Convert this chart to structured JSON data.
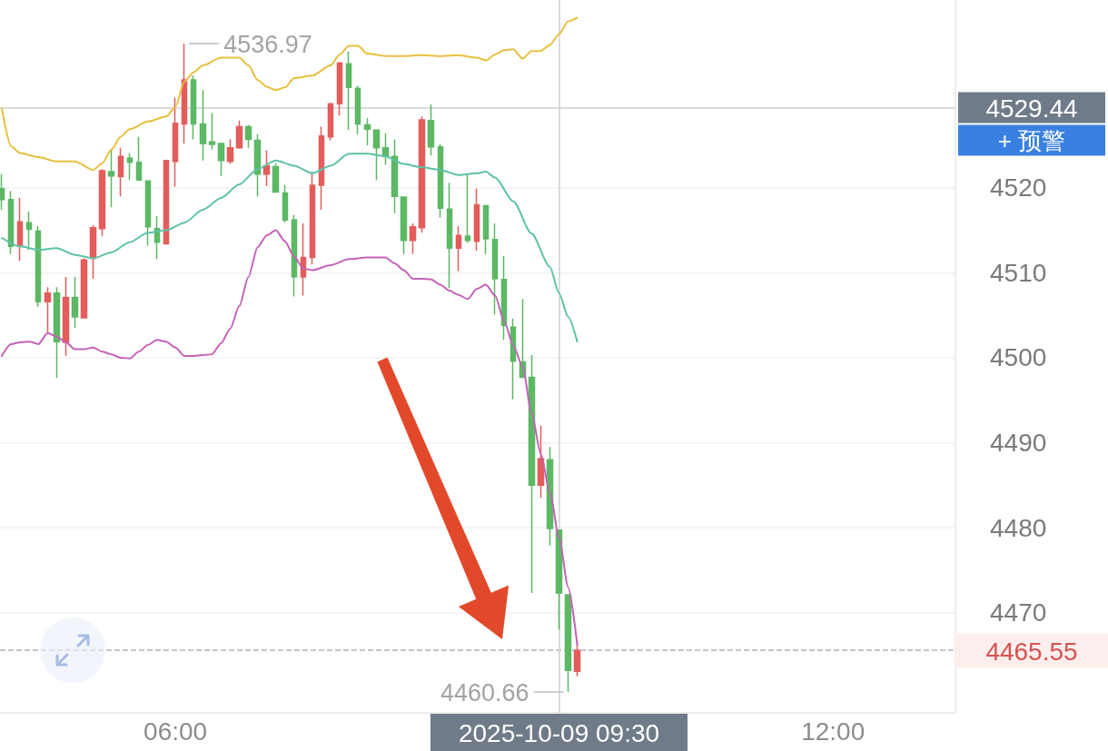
{
  "chart_data": {
    "type": "candlestick",
    "x": [
      "2025-10-09T04:25",
      "2025-10-09T04:30",
      "2025-10-09T04:35",
      "2025-10-09T04:40",
      "2025-10-09T04:45",
      "2025-10-09T04:50",
      "2025-10-09T04:55",
      "2025-10-09T05:00",
      "2025-10-09T05:05",
      "2025-10-09T05:10",
      "2025-10-09T05:15",
      "2025-10-09T05:20",
      "2025-10-09T05:25",
      "2025-10-09T05:30",
      "2025-10-09T05:35",
      "2025-10-09T05:40",
      "2025-10-09T05:45",
      "2025-10-09T05:50",
      "2025-10-09T05:55",
      "2025-10-09T06:00",
      "2025-10-09T06:05",
      "2025-10-09T06:10",
      "2025-10-09T06:15",
      "2025-10-09T06:20",
      "2025-10-09T06:25",
      "2025-10-09T06:30",
      "2025-10-09T06:35",
      "2025-10-09T06:40",
      "2025-10-09T06:45",
      "2025-10-09T06:50",
      "2025-10-09T06:55",
      "2025-10-09T07:00",
      "2025-10-09T07:05",
      "2025-10-09T07:10",
      "2025-10-09T07:15",
      "2025-10-09T07:20",
      "2025-10-09T07:25",
      "2025-10-09T07:30",
      "2025-10-09T07:35",
      "2025-10-09T07:40",
      "2025-10-09T07:45",
      "2025-10-09T07:50",
      "2025-10-09T07:55",
      "2025-10-09T08:00",
      "2025-10-09T08:05",
      "2025-10-09T08:10",
      "2025-10-09T08:15",
      "2025-10-09T08:20",
      "2025-10-09T08:25",
      "2025-10-09T08:30",
      "2025-10-09T08:35",
      "2025-10-09T08:40",
      "2025-10-09T08:45",
      "2025-10-09T08:50",
      "2025-10-09T08:55",
      "2025-10-09T09:00",
      "2025-10-09T09:05",
      "2025-10-09T09:10",
      "2025-10-09T09:15",
      "2025-10-09T09:20",
      "2025-10-09T09:25",
      "2025-10-09T09:30",
      "2025-10-09T09:35",
      "2025-10-09T09:40"
    ],
    "ohlc": [
      [
        4519.9,
        4521.6,
        4517.4,
        4518.6
      ],
      [
        4518.6,
        4519.6,
        4512.2,
        4513.1
      ],
      [
        4513.1,
        4518.8,
        4511.4,
        4516.0
      ],
      [
        4515.9,
        4517.2,
        4512.7,
        4515.1
      ],
      [
        4514.9,
        4515.5,
        4506.0,
        4506.6
      ],
      [
        4506.6,
        4508.3,
        4502.9,
        4507.6
      ],
      [
        4507.6,
        4508.3,
        4497.6,
        4501.9
      ],
      [
        4501.8,
        4509.5,
        4500.2,
        4507.1
      ],
      [
        4507.1,
        4509.5,
        4503.5,
        4504.8
      ],
      [
        4504.7,
        4511.7,
        4504.7,
        4511.5
      ],
      [
        4511.7,
        4515.6,
        4509.3,
        4515.3
      ],
      [
        4515.2,
        4522.2,
        4514.3,
        4522.0
      ],
      [
        4521.9,
        4524.5,
        4517.7,
        4521.4
      ],
      [
        4521.3,
        4524.7,
        4519.0,
        4523.7
      ],
      [
        4523.5,
        4524.1,
        4520.9,
        4523.0
      ],
      [
        4523.0,
        4526.0,
        4520.9,
        4520.9
      ],
      [
        4520.8,
        4520.8,
        4513.2,
        4515.4
      ],
      [
        4515.2,
        4516.7,
        4511.6,
        4513.6
      ],
      [
        4513.4,
        4523.2,
        4513.4,
        4523.2
      ],
      [
        4523.1,
        4530.6,
        4520.1,
        4527.6
      ],
      [
        4527.5,
        4536.97,
        4525.2,
        4532.7
      ],
      [
        4532.7,
        4533.2,
        4525.7,
        4527.5
      ],
      [
        4527.5,
        4531.5,
        4523.2,
        4525.2
      ],
      [
        4525.4,
        4528.8,
        4524.5,
        4525.1
      ],
      [
        4525.2,
        4525.2,
        4521.4,
        4523.2
      ],
      [
        4523.1,
        4525.7,
        4522.8,
        4524.7
      ],
      [
        4524.7,
        4527.9,
        4524.7,
        4527.2
      ],
      [
        4527.2,
        4527.4,
        4524.7,
        4525.7
      ],
      [
        4525.6,
        4526.3,
        4519.0,
        4521.6
      ],
      [
        4521.6,
        4524.4,
        4520.2,
        4522.6
      ],
      [
        4522.5,
        4522.9,
        4519.5,
        4519.5
      ],
      [
        4519.4,
        4520.3,
        4515.9,
        4516.2
      ],
      [
        4516.2,
        4516.8,
        4507.2,
        4509.5
      ],
      [
        4509.5,
        4515.8,
        4507.3,
        4511.8
      ],
      [
        4511.8,
        4521.9,
        4511.0,
        4520.3
      ],
      [
        4520.3,
        4527.2,
        4517.4,
        4526.1
      ],
      [
        4526.0,
        4529.9,
        4525.6,
        4529.9
      ],
      [
        4529.9,
        4534.7,
        4528.5,
        4534.7
      ],
      [
        4534.6,
        4536.0,
        4526.8,
        4531.8
      ],
      [
        4531.7,
        4532.0,
        4526.3,
        4527.5
      ],
      [
        4527.4,
        4528.2,
        4525.0,
        4526.9
      ],
      [
        4526.8,
        4526.8,
        4520.9,
        4524.7
      ],
      [
        4524.7,
        4526.4,
        4522.7,
        4523.7
      ],
      [
        4523.7,
        4525.7,
        4517.0,
        4519.0
      ],
      [
        4518.9,
        4518.9,
        4512.2,
        4513.8
      ],
      [
        4513.8,
        4515.8,
        4512.2,
        4515.4
      ],
      [
        4515.3,
        4528.4,
        4514.7,
        4528.0
      ],
      [
        4527.9,
        4529.8,
        4523.8,
        4524.8
      ],
      [
        4524.8,
        4525.1,
        4516.5,
        4517.6
      ],
      [
        4517.5,
        4520.6,
        4508.2,
        4512.9
      ],
      [
        4512.9,
        4515.5,
        4510.2,
        4514.4
      ],
      [
        4514.3,
        4521.5,
        4513.5,
        4513.8
      ],
      [
        4513.7,
        4519.9,
        4512.6,
        4518.0
      ],
      [
        4517.9,
        4517.9,
        4512.2,
        4514.0
      ],
      [
        4513.9,
        4515.8,
        4505.1,
        4509.3
      ],
      [
        4509.2,
        4512.0,
        4502.1,
        4503.8
      ],
      [
        4503.6,
        4504.6,
        4495.1,
        4499.6
      ],
      [
        4499.5,
        4506.9,
        4497.7,
        4497.7
      ],
      [
        4497.7,
        4500.3,
        4472.3,
        4485.0
      ],
      [
        4485.0,
        4492.0,
        4483.5,
        4488.1
      ],
      [
        4488.0,
        4489.5,
        4477.9,
        4479.9
      ],
      [
        4479.7,
        4479.7,
        4468.0,
        4472.3
      ],
      [
        4472.1,
        4472.1,
        4460.66,
        4463.2
      ],
      [
        4463.1,
        4466.4,
        4462.5,
        4465.55
      ]
    ],
    "colors": [
      "#5cb865",
      "#5cb865",
      "#e35d5b",
      "#5cb865",
      "#5cb865",
      "#e35d5b",
      "#5cb865",
      "#e35d5b",
      "#5cb865",
      "#e35d5b",
      "#e35d5b",
      "#e35d5b",
      "#5cb865",
      "#e35d5b",
      "#5cb865",
      "#5cb865",
      "#5cb865",
      "#5cb865",
      "#e35d5b",
      "#e35d5b",
      "#e35d5b",
      "#5cb865",
      "#5cb865",
      "#5cb865",
      "#5cb865",
      "#e35d5b",
      "#e35d5b",
      "#5cb865",
      "#5cb865",
      "#e35d5b",
      "#5cb865",
      "#5cb865",
      "#5cb865",
      "#e35d5b",
      "#e35d5b",
      "#e35d5b",
      "#e35d5b",
      "#e35d5b",
      "#5cb865",
      "#5cb865",
      "#5cb865",
      "#5cb865",
      "#5cb865",
      "#5cb865",
      "#5cb865",
      "#e35d5b",
      "#e35d5b",
      "#5cb865",
      "#5cb865",
      "#5cb865",
      "#e35d5b",
      "#5cb865",
      "#e35d5b",
      "#5cb865",
      "#5cb865",
      "#5cb865",
      "#5cb865",
      "#5cb865",
      "#5cb865",
      "#e35d5b",
      "#5cb865",
      "#5cb865",
      "#5cb865",
      "#e35d5b"
    ],
    "series": [
      {
        "type": "line",
        "color": "#e8bf3f",
        "x": [
          "2025-10-09T04:25",
          "2025-10-09T04:30",
          "2025-10-09T04:35",
          "2025-10-09T04:45",
          "2025-10-09T04:55",
          "2025-10-09T05:05",
          "2025-10-09T05:15",
          "2025-10-09T05:20",
          "2025-10-09T05:25",
          "2025-10-09T05:30",
          "2025-10-09T05:35",
          "2025-10-09T05:45",
          "2025-10-09T05:55",
          "2025-10-09T06:00",
          "2025-10-09T06:05",
          "2025-10-09T06:10",
          "2025-10-09T06:15",
          "2025-10-09T06:25",
          "2025-10-09T06:35",
          "2025-10-09T06:40",
          "2025-10-09T06:45",
          "2025-10-09T06:50",
          "2025-10-09T06:55",
          "2025-10-09T07:00",
          "2025-10-09T07:05",
          "2025-10-09T07:15",
          "2025-10-09T07:25",
          "2025-10-09T07:30",
          "2025-10-09T07:35",
          "2025-10-09T07:40",
          "2025-10-09T07:45",
          "2025-10-09T07:55",
          "2025-10-09T08:05",
          "2025-10-09T08:15",
          "2025-10-09T08:25",
          "2025-10-09T08:35",
          "2025-10-09T08:45",
          "2025-10-09T08:50",
          "2025-10-09T08:55",
          "2025-10-09T09:00",
          "2025-10-09T09:05",
          "2025-10-09T09:10",
          "2025-10-09T09:15",
          "2025-10-09T09:20",
          "2025-10-09T09:25",
          "2025-10-09T09:30",
          "2025-10-09T09:35",
          "2025-10-09T09:40"
        ],
        "values": [
          4529.3,
          4524.9,
          4524.1,
          4523.6,
          4523.1,
          4523.1,
          4522.1,
          4522.9,
          4524.5,
          4526.0,
          4526.9,
          4527.8,
          4528.4,
          4529.5,
          4532.5,
          4533.6,
          4534.4,
          4535.3,
          4535.3,
          4534.4,
          4532.7,
          4531.9,
          4531.5,
          4531.8,
          4532.9,
          4533.2,
          4534.4,
          4535.7,
          4536.7,
          4536.7,
          4535.8,
          4535.5,
          4535.5,
          4535.6,
          4535.5,
          4535.6,
          4535.3,
          4535.0,
          4535.7,
          4536.2,
          4536.3,
          4535.2,
          4536.1,
          4536.1,
          4536.8,
          4538.1,
          4539.6,
          4540.0
        ]
      },
      {
        "type": "line",
        "color": "#5cc2a8",
        "x": [
          "2025-10-09T04:25",
          "2025-10-09T04:35",
          "2025-10-09T04:45",
          "2025-10-09T04:55",
          "2025-10-09T05:05",
          "2025-10-09T05:15",
          "2025-10-09T05:25",
          "2025-10-09T05:35",
          "2025-10-09T05:45",
          "2025-10-09T05:55",
          "2025-10-09T06:05",
          "2025-10-09T06:15",
          "2025-10-09T06:25",
          "2025-10-09T06:35",
          "2025-10-09T06:45",
          "2025-10-09T06:55",
          "2025-10-09T07:05",
          "2025-10-09T07:15",
          "2025-10-09T07:25",
          "2025-10-09T07:35",
          "2025-10-09T07:45",
          "2025-10-09T07:55",
          "2025-10-09T08:05",
          "2025-10-09T08:15",
          "2025-10-09T08:25",
          "2025-10-09T08:35",
          "2025-10-09T08:45",
          "2025-10-09T08:50",
          "2025-10-09T08:55",
          "2025-10-09T09:05",
          "2025-10-09T09:15",
          "2025-10-09T09:25",
          "2025-10-09T09:30",
          "2025-10-09T09:35",
          "2025-10-09T09:40"
        ],
        "values": [
          4514.1,
          4513.1,
          4512.7,
          4512.9,
          4512.1,
          4511.7,
          4512.4,
          4513.6,
          4514.7,
          4515.0,
          4515.9,
          4517.4,
          4518.8,
          4520.4,
          4522.2,
          4523.2,
          4522.6,
          4521.7,
          4522.6,
          4524.0,
          4524.0,
          4523.7,
          4522.8,
          4522.4,
          4522.1,
          4521.5,
          4521.7,
          4521.9,
          4521.2,
          4518.4,
          4514.6,
          4510.7,
          4507.6,
          4504.8,
          4501.9
        ]
      },
      {
        "type": "line",
        "color": "#c462b9",
        "x": [
          "2025-10-09T04:25",
          "2025-10-09T04:30",
          "2025-10-09T04:35",
          "2025-10-09T04:40",
          "2025-10-09T04:45",
          "2025-10-09T04:50",
          "2025-10-09T04:55",
          "2025-10-09T05:00",
          "2025-10-09T05:05",
          "2025-10-09T05:10",
          "2025-10-09T05:15",
          "2025-10-09T05:20",
          "2025-10-09T05:25",
          "2025-10-09T05:30",
          "2025-10-09T05:35",
          "2025-10-09T05:40",
          "2025-10-09T05:45",
          "2025-10-09T05:50",
          "2025-10-09T05:55",
          "2025-10-09T06:00",
          "2025-10-09T06:05",
          "2025-10-09T06:10",
          "2025-10-09T06:15",
          "2025-10-09T06:20",
          "2025-10-09T06:25",
          "2025-10-09T06:30",
          "2025-10-09T06:35",
          "2025-10-09T06:40",
          "2025-10-09T06:45",
          "2025-10-09T06:50",
          "2025-10-09T06:55",
          "2025-10-09T07:00",
          "2025-10-09T07:05",
          "2025-10-09T07:10",
          "2025-10-09T07:15",
          "2025-10-09T07:25",
          "2025-10-09T07:35",
          "2025-10-09T07:45",
          "2025-10-09T07:55",
          "2025-10-09T08:00",
          "2025-10-09T08:05",
          "2025-10-09T08:10",
          "2025-10-09T08:15",
          "2025-10-09T08:20",
          "2025-10-09T08:25",
          "2025-10-09T08:30",
          "2025-10-09T08:35",
          "2025-10-09T08:40",
          "2025-10-09T08:45",
          "2025-10-09T08:50",
          "2025-10-09T08:55",
          "2025-10-09T09:00",
          "2025-10-09T09:05",
          "2025-10-09T09:10",
          "2025-10-09T09:15",
          "2025-10-09T09:20",
          "2025-10-09T09:25",
          "2025-10-09T09:30",
          "2025-10-09T09:35",
          "2025-10-09T09:40"
        ],
        "values": [
          4500.2,
          4501.6,
          4501.8,
          4501.9,
          4501.6,
          4502.9,
          4502.5,
          4501.8,
          4501.0,
          4501.0,
          4501.2,
          4500.7,
          4500.4,
          4500.0,
          4499.9,
          4500.7,
          4501.5,
          4502.1,
          4501.9,
          4501.2,
          4500.2,
          4500.2,
          4500.3,
          4500.4,
          4501.7,
          4503.4,
          4506.1,
          4509.5,
          4513.0,
          4514.4,
          4515.0,
          4513.7,
          4511.9,
          4510.5,
          4510.3,
          4510.9,
          4511.6,
          4511.8,
          4511.8,
          4511.1,
          4510.3,
          4509.3,
          4509.3,
          4509.2,
          4508.6,
          4507.9,
          4507.4,
          4506.9,
          4508.1,
          4508.6,
          4507.3,
          4504.3,
          4501.4,
          4499.0,
          4493.5,
          4488.7,
          4484.1,
          4478.9,
          4473.0,
          4466.2
        ]
      }
    ],
    "xlim": [
      "2025-10-09T04:24",
      "2025-10-09T13:07"
    ],
    "xticks": [
      {
        "value": "2025-10-09T06:00",
        "label": "06:00"
      },
      {
        "value": "2025-10-09T12:00",
        "label": "12:00"
      }
    ],
    "ylim": [
      4458.2,
      4542.1
    ],
    "yticks": [
      4470,
      4480,
      4490,
      4500,
      4510,
      4520
    ],
    "grid": "y",
    "marker": "none",
    "ref_lines": [
      {
        "axis": "y",
        "value": 4529.44,
        "label": "4529.44",
        "color": "#cfcfcf"
      },
      {
        "axis": "y",
        "value": 4465.55,
        "label": "4465.55",
        "color": "#b3b3b3",
        "line_style": "dashed"
      },
      {
        "axis": "x",
        "value": "2025-10-09T09:30",
        "label": "2025-10-09 09:30",
        "color": "#cfcfcf"
      }
    ],
    "annotations": [
      {
        "text": "4536.97",
        "x": "2025-10-09T06:05",
        "y": 4536.97
      },
      {
        "text": "4460.66",
        "x": "2025-10-09T09:35",
        "y": 4460.66
      },
      "+ 预警"
    ]
  }
}
